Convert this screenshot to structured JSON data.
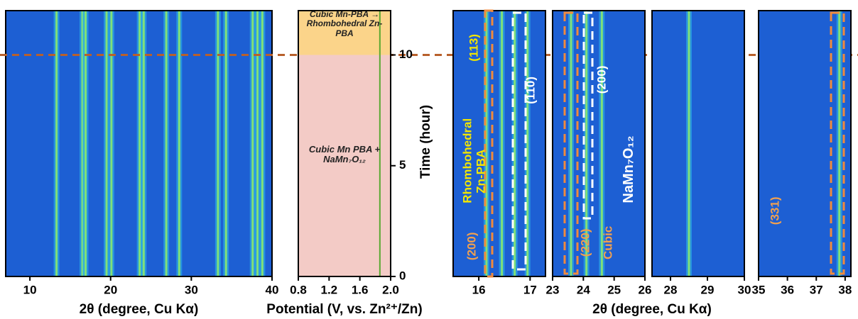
{
  "chart_data": [
    {
      "type": "heatmap",
      "xlabel": "2θ (degree, Cu Kα)",
      "xlim": [
        7,
        40
      ],
      "xticks": [
        10,
        20,
        30,
        40
      ],
      "ylim": [
        0,
        12
      ],
      "hline": 10,
      "peaks": [
        13.3,
        16.5,
        16.9,
        19.5,
        20.1,
        23.6,
        24.1,
        26.9,
        28.5,
        33.3,
        34.3,
        37.6,
        38.2,
        38.8
      ]
    },
    {
      "type": "line",
      "xlabel": "Potential (V, vs. Zn²⁺/Zn)",
      "ylabel": "Time (hour)",
      "xlim": [
        0.8,
        2.0
      ],
      "xticks": [
        0.8,
        1.2,
        1.6,
        {
          "value": 2,
          "label": "2.0"
        }
      ],
      "ylim": [
        0,
        12
      ],
      "yticks": [
        0,
        5,
        10
      ],
      "color": "#5aa832",
      "x": [
        1.86,
        1.86
      ],
      "values": [
        0,
        12
      ],
      "regions": [
        {
          "label": "Cubic Mn PBA + NaMn₇O₁₂",
          "ylim": [
            0,
            10
          ],
          "color": "#f3cbc6"
        },
        {
          "label": "Cubic Mn-PBA → Rhombohedral Zn-PBA",
          "ylim": [
            10,
            12
          ],
          "color": "#fbd48a"
        }
      ]
    },
    {
      "type": "heatmap",
      "xlabel": "2θ (degree, Cu Kα)",
      "xlim": [
        15.5,
        17.3
      ],
      "xticks": [
        16,
        17
      ],
      "ylim": [
        0,
        12
      ],
      "peaks": [
        16.15,
        16.45,
        16.7,
        16.95
      ],
      "annotations": [
        {
          "text": "Rhombohedral Zn-PBA",
          "color": "#f2e600"
        },
        {
          "text": "(113)",
          "color": "#f2e600"
        },
        {
          "text": "(110)",
          "color": "#ffffff"
        },
        {
          "text": "(200)",
          "color": "#f0a050"
        }
      ]
    },
    {
      "type": "heatmap",
      "xlim": [
        23,
        26
      ],
      "xticks": [
        23,
        24,
        25,
        26
      ],
      "ylim": [
        0,
        12
      ],
      "peaks": [
        23.6,
        24.1,
        24.6
      ],
      "annotations": [
        {
          "text": "(200)",
          "color": "#ffffff"
        },
        {
          "text": "NaMn₇O₁₂",
          "color": "#ffffff"
        },
        {
          "text": "(220)",
          "color": "#f0a050"
        },
        {
          "text": "Cubic",
          "color": "#f0a050"
        }
      ]
    },
    {
      "type": "heatmap",
      "xlim": [
        27.5,
        30
      ],
      "xticks": [
        28,
        29,
        30
      ],
      "ylim": [
        0,
        12
      ],
      "peaks": [
        28.5
      ]
    },
    {
      "type": "heatmap",
      "xlim": [
        35,
        38.2
      ],
      "xticks": [
        35,
        36,
        37,
        38
      ],
      "ylim": [
        0,
        12
      ],
      "peaks": [
        37.8
      ],
      "annotations": [
        {
          "text": "(331)",
          "color": "#f0a050"
        }
      ]
    }
  ]
}
